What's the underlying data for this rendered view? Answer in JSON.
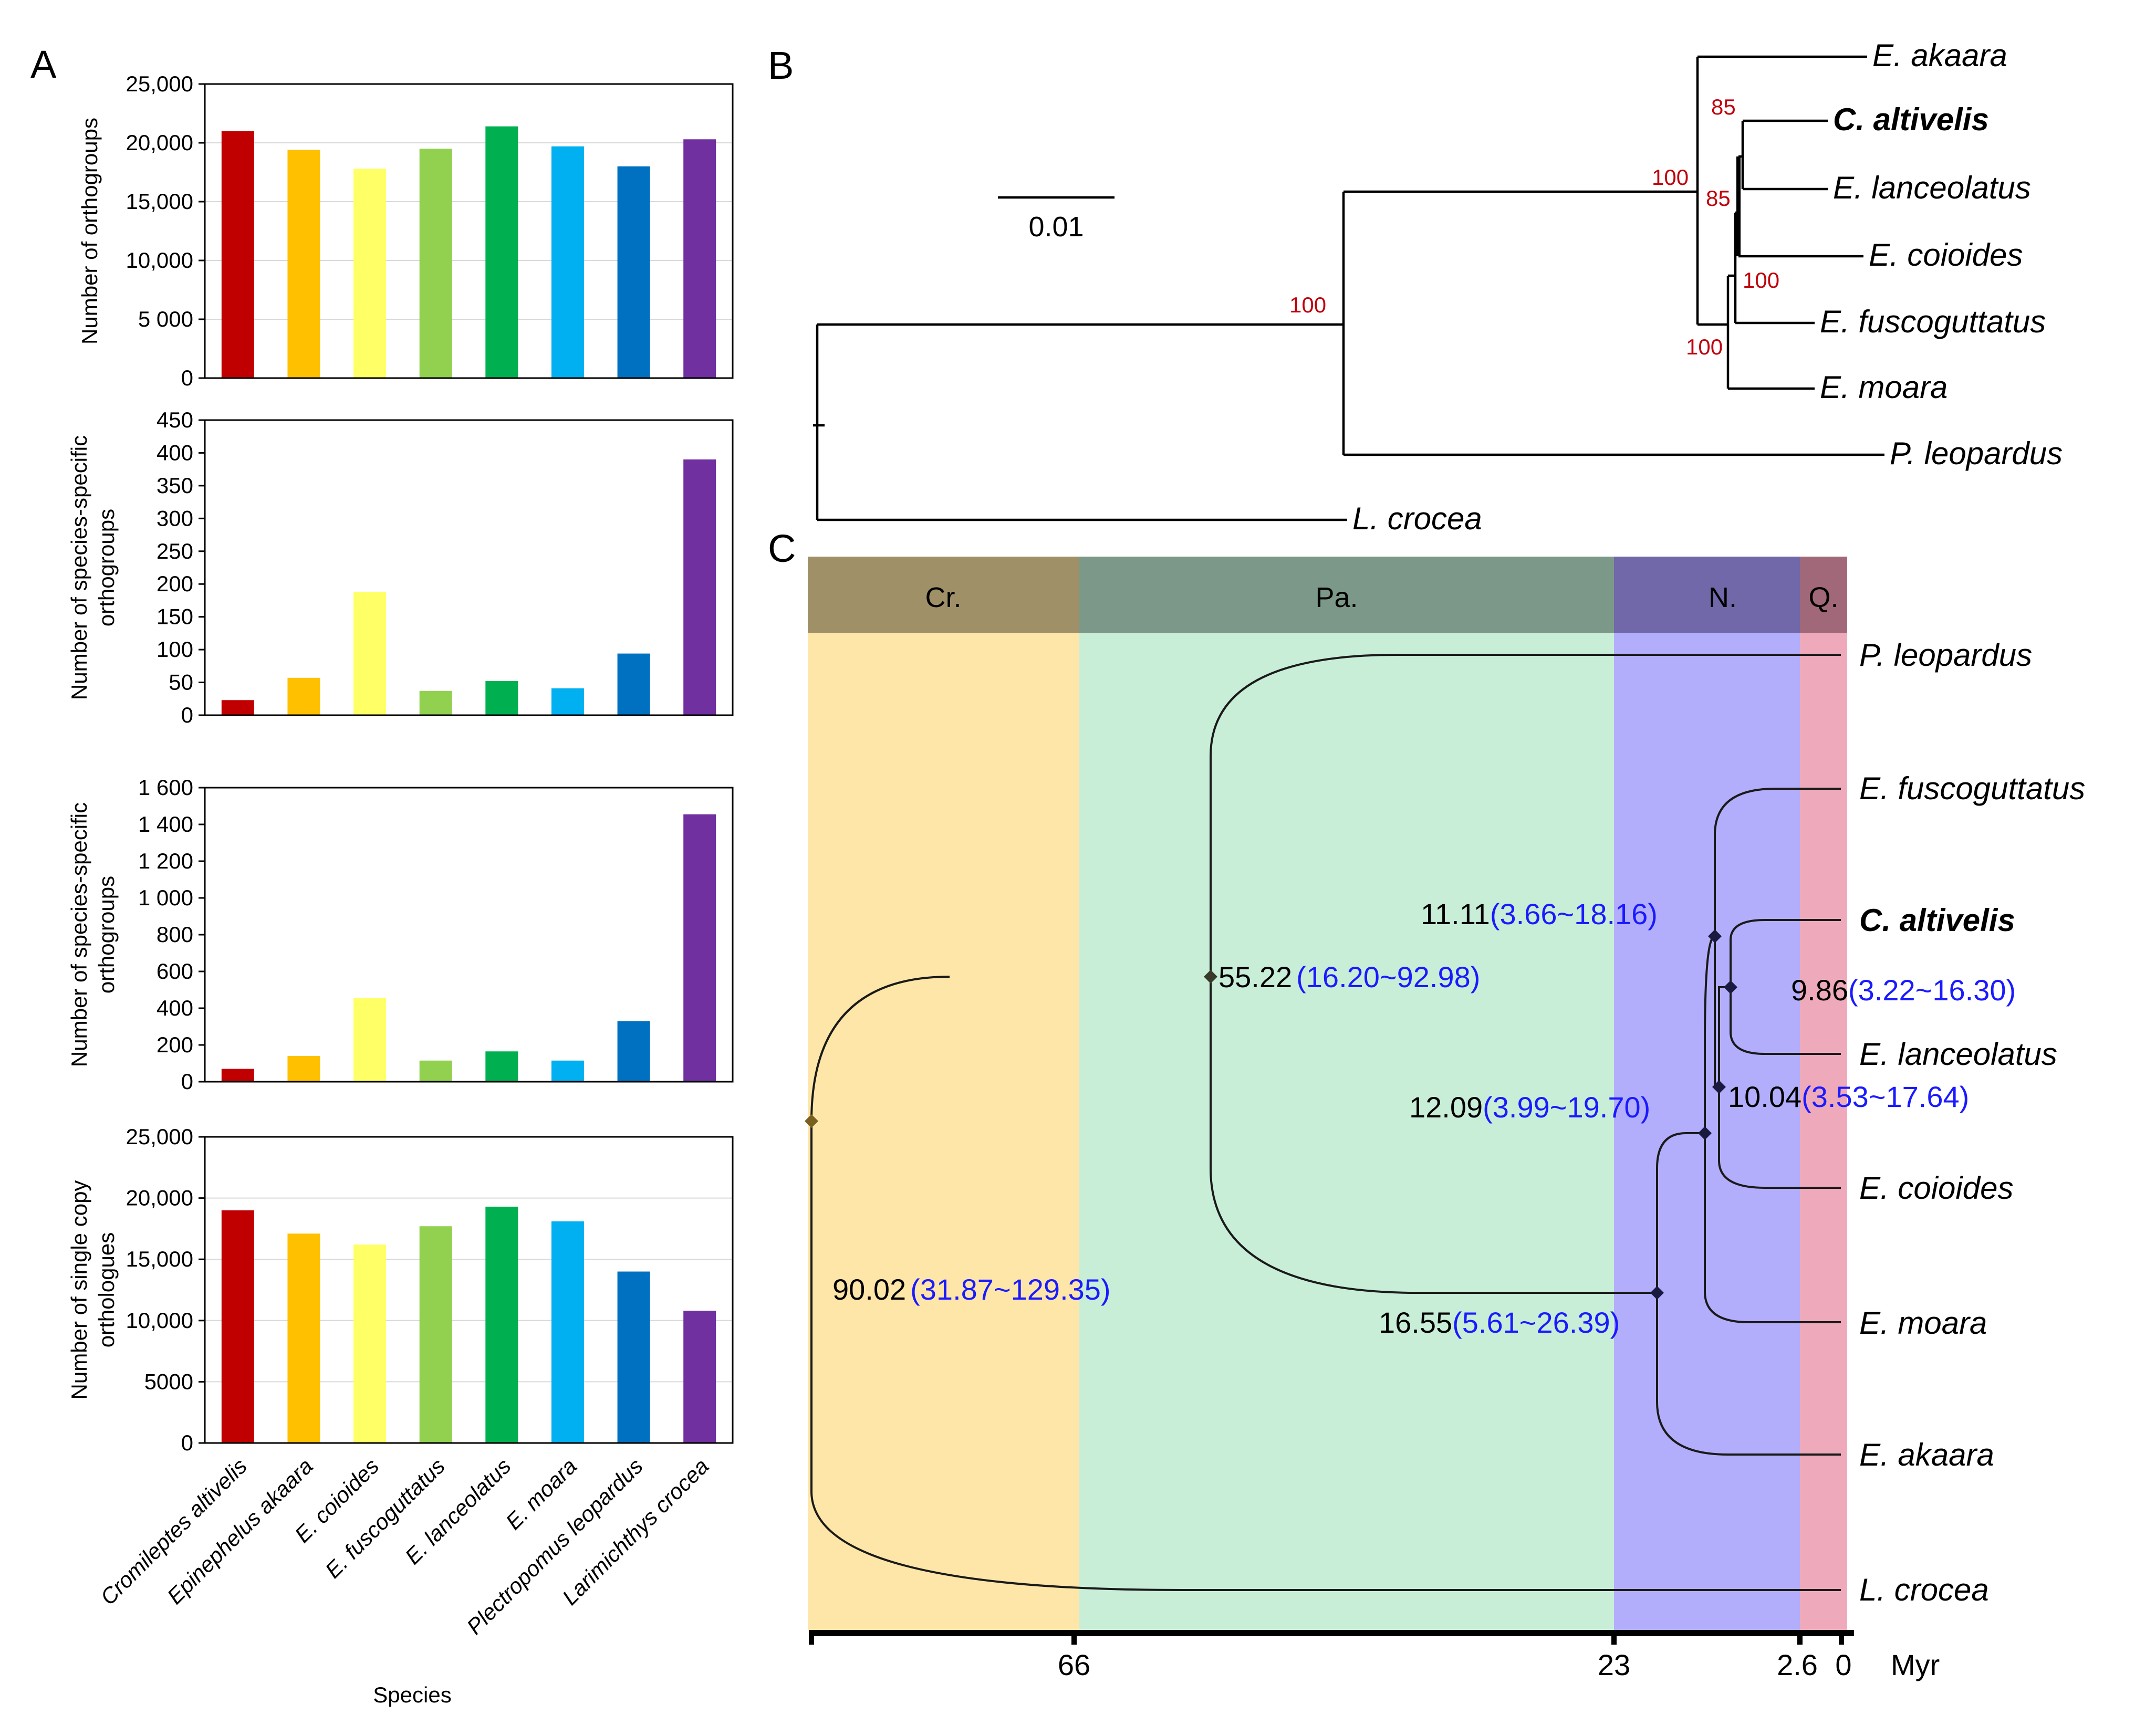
{
  "panel_labels": {
    "a": "A",
    "b": "B",
    "c": "C"
  },
  "chart_data": [
    {
      "type": "bar",
      "panel": "A",
      "ylabel": "Number of orthogroups",
      "ylim": [
        0,
        25000
      ],
      "yticks": [
        0,
        5000,
        10000,
        15000,
        20000,
        25000
      ],
      "ytick_labels": [
        "0",
        "5 000",
        "10,000",
        "15,000",
        "20,000",
        "25,000"
      ],
      "values": [
        21000,
        19400,
        17800,
        19500,
        21400,
        19700,
        18000,
        20300
      ]
    },
    {
      "type": "bar",
      "panel": "A",
      "ylabel": [
        "Number of species-specific",
        "orthogroups"
      ],
      "ylim": [
        0,
        450
      ],
      "yticks": [
        0,
        50,
        100,
        150,
        200,
        250,
        300,
        350,
        400,
        450
      ],
      "ytick_labels": [
        "0",
        "50",
        "100",
        "150",
        "200",
        "250",
        "300",
        "350",
        "400",
        "450"
      ],
      "values": [
        23,
        57,
        188,
        37,
        52,
        41,
        94,
        390
      ]
    },
    {
      "type": "bar",
      "panel": "A",
      "ylabel": [
        "Number of species-specific",
        "orthogroups"
      ],
      "ylim": [
        0,
        1600
      ],
      "yticks": [
        0,
        200,
        400,
        600,
        800,
        1000,
        1200,
        1400,
        1600
      ],
      "ytick_labels": [
        "0",
        "200",
        "400",
        "600",
        "800",
        "1 000",
        "1 200",
        "1 400",
        "1 600"
      ],
      "values": [
        70,
        140,
        455,
        115,
        165,
        115,
        330,
        1455
      ]
    },
    {
      "type": "bar",
      "panel": "A",
      "ylabel": [
        "Number of single copy",
        "orthologues"
      ],
      "ylim": [
        0,
        25000
      ],
      "yticks": [
        0,
        5000,
        10000,
        15000,
        20000,
        25000
      ],
      "ytick_labels": [
        "0",
        "5000",
        "10,000",
        "15,000",
        "20,000",
        "25,000"
      ],
      "values": [
        19000,
        17100,
        16200,
        17700,
        19300,
        18100,
        14000,
        10800
      ]
    }
  ],
  "species": [
    "Cromileptes altivelis",
    "Epinephelus akaara",
    "E. coioides",
    "E. fuscoguttatus",
    "E. lanceolatus",
    "E. moara",
    "Plectropomus leopardus",
    "Larimichthys crocea"
  ],
  "bar_colors": [
    "#c00000",
    "#ffc000",
    "#ffff66",
    "#92d050",
    "#00b050",
    "#00b0f0",
    "#0070c0",
    "#7030a0"
  ],
  "xlabel": "Species",
  "tree_b": {
    "scale_label": "0.01",
    "tips": [
      "E. akaara",
      "C. altivelis",
      "E. lanceolatus",
      "E. coioides",
      "E. fuscoguttatus",
      "E. moara",
      "P. leopardus",
      "L. crocea"
    ],
    "bootstrap": [
      "100",
      "100",
      "85",
      "85",
      "100",
      "100"
    ]
  },
  "tree_c": {
    "eras": [
      "Cr.",
      "Pa.",
      "N.",
      "Q."
    ],
    "era_colors": [
      "#a09068",
      "#7c9888",
      "#7068a8",
      "#a06878"
    ],
    "band_colors": [
      "#fde6a8",
      "#c8eed8",
      "#b2aefc",
      "#eeaabb"
    ],
    "tips": [
      "P. leopardus",
      "E. fuscoguttatus",
      "C. altivelis",
      "E. lanceolatus",
      "E. coioides",
      "E. moara",
      "E. akaara",
      "L. crocea"
    ],
    "nodes": [
      {
        "age": "90.02",
        "ci": "(31.87~129.35)"
      },
      {
        "age": "55.22",
        "ci": "(16.20~92.98)"
      },
      {
        "age": "16.55",
        "ci": "(5.61~26.39)"
      },
      {
        "age": "12.09",
        "ci": "(3.99~19.70)"
      },
      {
        "age": "11.11",
        "ci": "(3.66~18.16)"
      },
      {
        "age": "10.04",
        "ci": "(3.53~17.64)"
      },
      {
        "age": "9.86",
        "ci": "(3.22~16.30)"
      }
    ],
    "axis_ticks": [
      "66",
      "23",
      "2.6",
      "0"
    ],
    "axis_label": "Myr"
  }
}
